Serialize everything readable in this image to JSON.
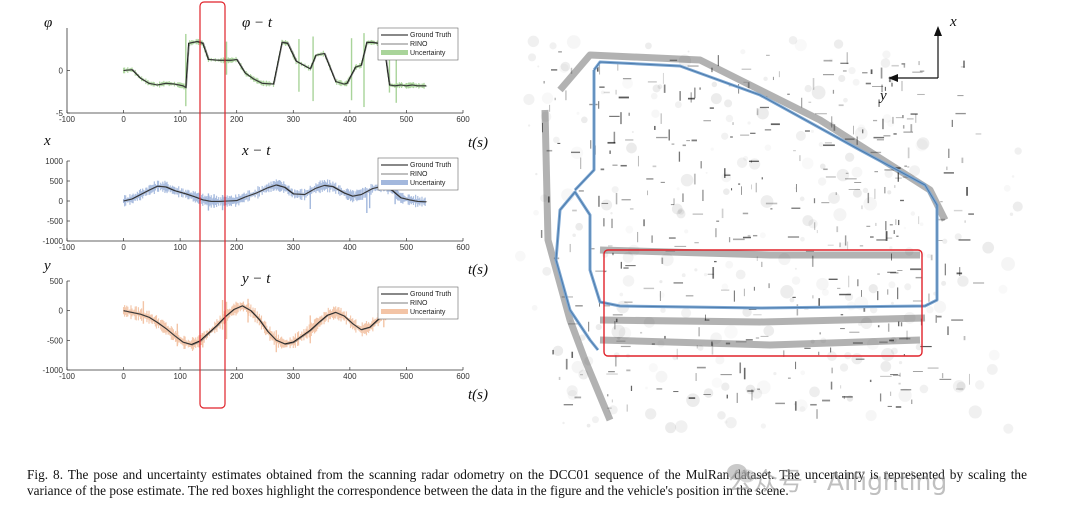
{
  "chart_data": [
    {
      "type": "line",
      "title": "φ − t",
      "ylabel": "φ",
      "xlabel": "t(s)",
      "xlim": [
        -100,
        600
      ],
      "ylim": [
        -5,
        5
      ],
      "x_ticks": [
        "-100",
        "0",
        "100",
        "200",
        "300",
        "400",
        "500",
        "600"
      ],
      "y_ticks": [
        "0",
        "-5"
      ],
      "legend": [
        "Ground Truth",
        "RINO",
        "Uncertainty"
      ],
      "legend_position": "top-right",
      "uncertainty_color": "#a9d49a",
      "series": [
        {
          "name": "Ground Truth",
          "x": [
            0,
            15,
            30,
            45,
            60,
            75,
            90,
            105,
            110,
            115,
            130,
            140,
            150,
            170,
            180,
            190,
            200,
            215,
            230,
            245,
            265,
            280,
            290,
            305,
            330,
            340,
            355,
            375,
            390,
            395,
            410,
            420,
            430,
            440,
            450,
            460,
            470,
            480,
            490,
            500,
            510,
            520,
            535
          ],
          "y": [
            0,
            0.1,
            -0.9,
            -1.5,
            -1.7,
            -1.5,
            -1.6,
            -1.8,
            -2.0,
            3.2,
            3.4,
            3.2,
            1.3,
            1.2,
            1.2,
            1.2,
            1.3,
            -0.3,
            -1.0,
            -1.5,
            -1.6,
            3.3,
            3.2,
            1.1,
            0.2,
            1.8,
            2.0,
            -1.3,
            -1.6,
            -1.5,
            0.4,
            0.6,
            3.3,
            3.3,
            3.2,
            3.1,
            -1.7,
            -1.8,
            -1.7,
            -1.8,
            -1.7,
            -1.8,
            -1.8
          ]
        }
      ],
      "uncertainty_spikes": [
        [
          110,
          -4.2,
          4.3
        ],
        [
          182,
          -0.5,
          3.4
        ],
        [
          310,
          -2.5,
          3.7
        ],
        [
          335,
          -3.6,
          4.0
        ],
        [
          403,
          -3.5,
          3.8
        ],
        [
          425,
          -4.3,
          4.4
        ],
        [
          470,
          -2.6,
          3.8
        ],
        [
          482,
          -3.8,
          3.5
        ]
      ]
    },
    {
      "type": "line",
      "title": "x − t",
      "ylabel": "x",
      "xlabel": "t(s)",
      "xlim": [
        -100,
        600
      ],
      "ylim": [
        -1000,
        1000
      ],
      "x_ticks": [
        "-100",
        "0",
        "100",
        "200",
        "300",
        "400",
        "500",
        "600"
      ],
      "y_ticks": [
        "1000",
        "500",
        "0",
        "-500",
        "-1000"
      ],
      "legend": [
        "Ground Truth",
        "RINO",
        "Uncertainty"
      ],
      "legend_position": "top-right",
      "uncertainty_color": "#a3b8dd",
      "series": [
        {
          "name": "Ground Truth",
          "x": [
            0,
            15,
            30,
            45,
            60,
            75,
            90,
            110,
            125,
            140,
            155,
            170,
            185,
            200,
            215,
            235,
            255,
            270,
            285,
            300,
            320,
            340,
            355,
            370,
            390,
            405,
            420,
            440,
            460,
            475,
            490,
            505,
            520,
            535
          ],
          "y": [
            0,
            50,
            160,
            270,
            370,
            350,
            260,
            180,
            110,
            30,
            -10,
            -10,
            0,
            10,
            100,
            200,
            330,
            400,
            340,
            180,
            160,
            320,
            390,
            360,
            200,
            120,
            160,
            310,
            380,
            260,
            80,
            30,
            -10,
            -20
          ]
        }
      ],
      "uncertainty_spikes": [
        [
          150,
          -240,
          190
        ],
        [
          160,
          -170,
          170
        ],
        [
          175,
          -230,
          150
        ],
        [
          330,
          -200,
          320
        ],
        [
          430,
          -300,
          260
        ],
        [
          435,
          -180,
          250
        ],
        [
          480,
          -80,
          220
        ]
      ]
    },
    {
      "type": "line",
      "title": "y − t",
      "ylabel": "y",
      "xlabel": "t(s)",
      "xlim": [
        -100,
        600
      ],
      "ylim": [
        -1000,
        500
      ],
      "x_ticks": [
        "-100",
        "0",
        "100",
        "200",
        "300",
        "400",
        "500",
        "600"
      ],
      "y_ticks": [
        "500",
        "0",
        "-500",
        "-1000"
      ],
      "legend": [
        "Ground Truth",
        "RINO",
        "Uncertainty"
      ],
      "legend_position": "top-right",
      "uncertainty_color": "#f3c4a6",
      "series": [
        {
          "name": "Ground Truth",
          "x": [
            0,
            15,
            30,
            45,
            60,
            75,
            90,
            105,
            120,
            135,
            150,
            165,
            180,
            195,
            210,
            225,
            240,
            255,
            270,
            285,
            300,
            315,
            330,
            345,
            360,
            375,
            390,
            405,
            420,
            435,
            450,
            465,
            480,
            495,
            510,
            525,
            535
          ],
          "y": [
            0,
            -30,
            -60,
            -110,
            -200,
            -300,
            -420,
            -530,
            -570,
            -510,
            -380,
            -250,
            -100,
            20,
            80,
            0,
            -150,
            -350,
            -500,
            -560,
            -530,
            -430,
            -330,
            -200,
            -80,
            -30,
            -90,
            -220,
            -320,
            -280,
            -150,
            -40,
            20,
            60,
            20,
            -20,
            -50
          ]
        }
      ],
      "uncertainty_spikes": [
        [
          35,
          -220,
          160
        ],
        [
          95,
          -600,
          -220
        ],
        [
          140,
          -620,
          -380
        ],
        [
          175,
          -320,
          180
        ],
        [
          182,
          -480,
          150
        ],
        [
          220,
          -200,
          200
        ],
        [
          270,
          -700,
          -330
        ],
        [
          330,
          -550,
          -80
        ],
        [
          460,
          -280,
          120
        ]
      ]
    }
  ],
  "map": {
    "axis_x_label": "x",
    "axis_y_label": "y"
  },
  "caption": {
    "text": "Fig. 8.  The pose and uncertainty estimates obtained from the scanning radar odometry on the DCC01 sequence of the MulRan dataset. The uncertainty is represented by scaling the variance of the pose estimate. The red boxes highlight the correspondence between the data in the figure and the vehicle's position in the scene."
  },
  "watermark": {
    "text": "公众号 · AIfighting"
  },
  "colors": {
    "highlight": "#e0222a",
    "trajectory": "#7ea8d4",
    "gt_line": "#111111"
  }
}
